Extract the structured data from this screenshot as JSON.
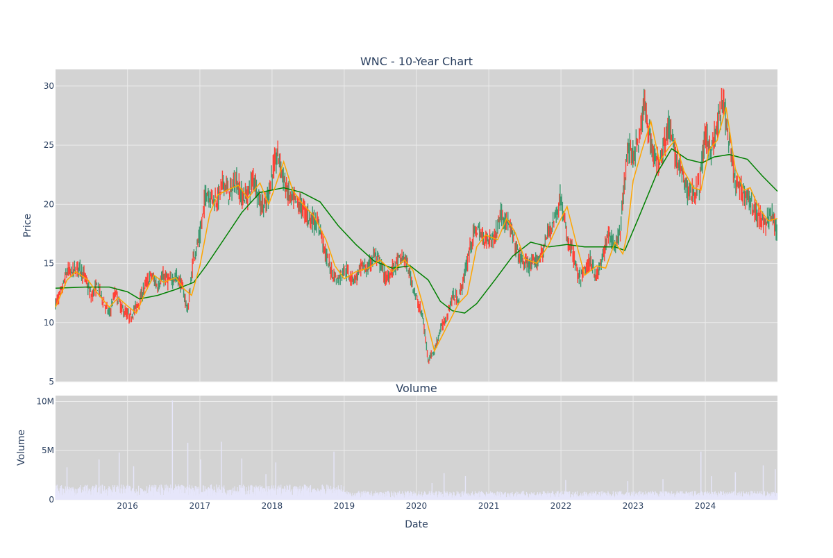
{
  "chart_data": {
    "type": "candlestick",
    "title": "WNC - 10-Year Chart",
    "subplot_title": "Volume",
    "xlabel": "Date",
    "ylabel": "Price",
    "volume_ylabel": "Volume",
    "x_range": [
      "2015-01-02",
      "2024-12-31"
    ],
    "x_ticks": [
      "2016",
      "2017",
      "2018",
      "2019",
      "2020",
      "2021",
      "2022",
      "2023",
      "2024"
    ],
    "price_ylim": [
      5,
      31.4
    ],
    "price_ticks": [
      5,
      10,
      15,
      20,
      25,
      30
    ],
    "volume_ylim": [
      0,
      10600000
    ],
    "volume_ticks": [
      0,
      5000000,
      10000000
    ],
    "volume_tick_labels": [
      "0",
      "5M",
      "10M"
    ],
    "grid": true,
    "colors": {
      "plot_bg": "#d3d3d3",
      "grid": "#ebebeb",
      "increasing": "#3d9970",
      "decreasing": "#ff4136",
      "ma_short": "#ffa500",
      "ma_long": "#008000",
      "volume": "#e6e6fa",
      "text": "#2a3f5f"
    },
    "price_path": [
      [
        "2015-01-02",
        11.6
      ],
      [
        "2015-02-01",
        12.6
      ],
      [
        "2015-03-01",
        14.3
      ],
      [
        "2015-04-01",
        14.3
      ],
      [
        "2015-05-01",
        14.7
      ],
      [
        "2015-06-01",
        13.8
      ],
      [
        "2015-07-01",
        12.2
      ],
      [
        "2015-08-01",
        13.1
      ],
      [
        "2015-09-01",
        11.8
      ],
      [
        "2015-10-01",
        10.7
      ],
      [
        "2015-11-01",
        12.6
      ],
      [
        "2015-12-01",
        11.2
      ],
      [
        "2016-01-15",
        10.4
      ],
      [
        "2016-03-01",
        11.8
      ],
      [
        "2016-04-01",
        13.2
      ],
      [
        "2016-05-01",
        14.0
      ],
      [
        "2016-06-01",
        13.1
      ],
      [
        "2016-07-01",
        13.9
      ],
      [
        "2016-08-01",
        13.5
      ],
      [
        "2016-09-01",
        13.9
      ],
      [
        "2016-10-01",
        13.2
      ],
      [
        "2016-11-01",
        11.0
      ],
      [
        "2016-12-01",
        15.7
      ],
      [
        "2017-01-01",
        17.2
      ],
      [
        "2017-02-01",
        21.1
      ],
      [
        "2017-03-01",
        20.6
      ],
      [
        "2017-04-01",
        20.4
      ],
      [
        "2017-05-01",
        21.9
      ],
      [
        "2017-06-01",
        20.8
      ],
      [
        "2017-07-01",
        22.2
      ],
      [
        "2017-08-01",
        20.6
      ],
      [
        "2017-09-01",
        20.8
      ],
      [
        "2017-10-01",
        22.4
      ],
      [
        "2017-11-01",
        20.1
      ],
      [
        "2017-12-01",
        19.8
      ],
      [
        "2018-01-01",
        22.6
      ],
      [
        "2018-02-01",
        24.3
      ],
      [
        "2018-03-01",
        22.0
      ],
      [
        "2018-04-01",
        20.5
      ],
      [
        "2018-05-01",
        20.2
      ],
      [
        "2018-06-01",
        19.8
      ],
      [
        "2018-07-01",
        19.0
      ],
      [
        "2018-08-01",
        18.6
      ],
      [
        "2018-09-01",
        18.0
      ],
      [
        "2018-10-01",
        15.6
      ],
      [
        "2018-11-01",
        14.2
      ],
      [
        "2018-12-01",
        13.6
      ],
      [
        "2019-01-01",
        14.6
      ],
      [
        "2019-02-01",
        13.9
      ],
      [
        "2019-03-01",
        13.7
      ],
      [
        "2019-04-01",
        14.8
      ],
      [
        "2019-05-01",
        14.5
      ],
      [
        "2019-06-01",
        15.8
      ],
      [
        "2019-07-01",
        15.0
      ],
      [
        "2019-08-01",
        13.6
      ],
      [
        "2019-09-01",
        14.5
      ],
      [
        "2019-10-01",
        15.2
      ],
      [
        "2019-11-01",
        15.5
      ],
      [
        "2019-12-01",
        14.0
      ],
      [
        "2020-01-01",
        12.0
      ],
      [
        "2020-02-01",
        10.5
      ],
      [
        "2020-03-01",
        6.9
      ],
      [
        "2020-04-01",
        7.6
      ],
      [
        "2020-05-01",
        9.4
      ],
      [
        "2020-06-01",
        10.4
      ],
      [
        "2020-07-01",
        12.2
      ],
      [
        "2020-08-01",
        12.0
      ],
      [
        "2020-09-01",
        14.0
      ],
      [
        "2020-10-01",
        16.6
      ],
      [
        "2020-11-01",
        18.0
      ],
      [
        "2020-12-01",
        17.2
      ],
      [
        "2021-01-01",
        17.0
      ],
      [
        "2021-02-01",
        17.2
      ],
      [
        "2021-03-01",
        19.2
      ],
      [
        "2021-04-01",
        18.6
      ],
      [
        "2021-05-01",
        17.4
      ],
      [
        "2021-06-01",
        15.6
      ],
      [
        "2021-07-01",
        15.0
      ],
      [
        "2021-08-01",
        14.8
      ],
      [
        "2021-09-01",
        15.2
      ],
      [
        "2021-10-01",
        16.0
      ],
      [
        "2021-11-01",
        17.8
      ],
      [
        "2021-12-01",
        18.8
      ],
      [
        "2022-01-01",
        20.6
      ],
      [
        "2022-02-01",
        17.0
      ],
      [
        "2022-03-01",
        16.0
      ],
      [
        "2022-04-01",
        13.6
      ],
      [
        "2022-05-01",
        14.4
      ],
      [
        "2022-06-01",
        15.2
      ],
      [
        "2022-07-01",
        13.8
      ],
      [
        "2022-08-01",
        15.6
      ],
      [
        "2022-09-01",
        17.6
      ],
      [
        "2022-10-01",
        16.4
      ],
      [
        "2022-11-01",
        18.2
      ],
      [
        "2022-12-01",
        24.6
      ],
      [
        "2023-01-01",
        24.2
      ],
      [
        "2023-02-01",
        25.6
      ],
      [
        "2023-03-01",
        28.5
      ],
      [
        "2023-04-01",
        25.2
      ],
      [
        "2023-05-01",
        23.3
      ],
      [
        "2023-06-01",
        24.8
      ],
      [
        "2023-07-01",
        26.6
      ],
      [
        "2023-08-01",
        24.2
      ],
      [
        "2023-09-01",
        22.8
      ],
      [
        "2023-10-01",
        21.2
      ],
      [
        "2023-11-01",
        21.0
      ],
      [
        "2023-12-01",
        21.5
      ],
      [
        "2024-01-01",
        25.8
      ],
      [
        "2024-02-01",
        24.6
      ],
      [
        "2024-03-01",
        26.4
      ],
      [
        "2024-04-01",
        28.8
      ],
      [
        "2024-05-01",
        25.0
      ],
      [
        "2024-06-01",
        21.8
      ],
      [
        "2024-07-01",
        21.2
      ],
      [
        "2024-08-01",
        20.8
      ],
      [
        "2024-09-01",
        19.6
      ],
      [
        "2024-10-01",
        19.0
      ],
      [
        "2024-11-01",
        18.2
      ],
      [
        "2024-12-01",
        19.4
      ],
      [
        "2024-12-31",
        17.2
      ]
    ],
    "ma_short": [
      [
        "2015-01-02",
        11.3
      ],
      [
        "2015-03-01",
        13.6
      ],
      [
        "2015-04-15",
        14.3
      ],
      [
        "2015-06-15",
        13.6
      ],
      [
        "2015-08-01",
        12.5
      ],
      [
        "2015-10-01",
        11.3
      ],
      [
        "2015-11-15",
        12.1
      ],
      [
        "2016-01-01",
        11.4
      ],
      [
        "2016-02-15",
        10.8
      ],
      [
        "2016-04-01",
        12.6
      ],
      [
        "2016-05-15",
        14.0
      ],
      [
        "2016-07-01",
        13.4
      ],
      [
        "2016-09-01",
        13.8
      ],
      [
        "2016-10-15",
        12.8
      ],
      [
        "2016-11-20",
        12.3
      ],
      [
        "2017-01-01",
        14.8
      ],
      [
        "2017-02-20",
        19.2
      ],
      [
        "2017-04-01",
        20.8
      ],
      [
        "2017-06-01",
        21.3
      ],
      [
        "2017-07-15",
        21.6
      ],
      [
        "2017-09-01",
        20.5
      ],
      [
        "2017-11-01",
        21.8
      ],
      [
        "2017-12-15",
        20.0
      ],
      [
        "2018-01-15",
        21.4
      ],
      [
        "2018-03-01",
        23.6
      ],
      [
        "2018-04-15",
        21.2
      ],
      [
        "2018-06-01",
        20.1
      ],
      [
        "2018-08-01",
        19.0
      ],
      [
        "2018-10-01",
        17.0
      ],
      [
        "2018-11-15",
        14.8
      ],
      [
        "2019-01-01",
        13.7
      ],
      [
        "2019-03-01",
        14.3
      ],
      [
        "2019-05-01",
        14.6
      ],
      [
        "2019-07-01",
        15.3
      ],
      [
        "2019-09-01",
        14.3
      ],
      [
        "2019-11-01",
        15.3
      ],
      [
        "2019-12-15",
        14.4
      ],
      [
        "2020-02-01",
        11.6
      ],
      [
        "2020-04-01",
        7.6
      ],
      [
        "2020-06-01",
        9.6
      ],
      [
        "2020-08-01",
        11.6
      ],
      [
        "2020-09-15",
        12.4
      ],
      [
        "2020-11-01",
        16.4
      ],
      [
        "2020-12-15",
        17.4
      ],
      [
        "2021-02-15",
        17.0
      ],
      [
        "2021-04-01",
        18.8
      ],
      [
        "2021-05-15",
        17.6
      ],
      [
        "2021-07-01",
        15.4
      ],
      [
        "2021-09-01",
        15.0
      ],
      [
        "2021-11-01",
        16.6
      ],
      [
        "2021-12-15",
        18.2
      ],
      [
        "2022-02-01",
        19.8
      ],
      [
        "2022-03-15",
        17.0
      ],
      [
        "2022-05-01",
        14.0
      ],
      [
        "2022-07-01",
        14.8
      ],
      [
        "2022-08-15",
        14.6
      ],
      [
        "2022-10-01",
        16.8
      ],
      [
        "2022-11-10",
        15.8
      ],
      [
        "2022-12-01",
        17.4
      ],
      [
        "2023-01-01",
        22.0
      ],
      [
        "2023-02-15",
        24.6
      ],
      [
        "2023-04-01",
        27.0
      ],
      [
        "2023-05-15",
        23.6
      ],
      [
        "2023-07-01",
        24.8
      ],
      [
        "2023-08-01",
        25.4
      ],
      [
        "2023-09-15",
        22.8
      ],
      [
        "2023-11-01",
        21.4
      ],
      [
        "2023-12-10",
        21.2
      ],
      [
        "2024-01-20",
        24.6
      ],
      [
        "2024-03-01",
        25.4
      ],
      [
        "2024-04-15",
        28.2
      ],
      [
        "2024-06-01",
        23.0
      ],
      [
        "2024-07-15",
        21.2
      ],
      [
        "2024-08-15",
        21.4
      ],
      [
        "2024-10-01",
        19.6
      ],
      [
        "2024-11-15",
        18.6
      ],
      [
        "2024-12-31",
        18.8
      ]
    ],
    "ma_long": [
      [
        "2015-01-02",
        12.9
      ],
      [
        "2015-06-01",
        13.0
      ],
      [
        "2015-10-01",
        13.0
      ],
      [
        "2016-01-01",
        12.6
      ],
      [
        "2016-03-01",
        12.0
      ],
      [
        "2016-06-01",
        12.3
      ],
      [
        "2016-09-01",
        12.8
      ],
      [
        "2016-12-01",
        13.4
      ],
      [
        "2017-02-01",
        14.8
      ],
      [
        "2017-05-01",
        17.0
      ],
      [
        "2017-08-01",
        19.3
      ],
      [
        "2017-11-01",
        21.0
      ],
      [
        "2018-03-01",
        21.4
      ],
      [
        "2018-06-01",
        21.0
      ],
      [
        "2018-09-01",
        20.2
      ],
      [
        "2018-12-01",
        18.2
      ],
      [
        "2019-03-01",
        16.6
      ],
      [
        "2019-06-01",
        15.2
      ],
      [
        "2019-09-01",
        14.6
      ],
      [
        "2019-12-01",
        14.8
      ],
      [
        "2020-03-01",
        13.6
      ],
      [
        "2020-05-01",
        11.8
      ],
      [
        "2020-07-01",
        11.0
      ],
      [
        "2020-09-01",
        10.8
      ],
      [
        "2020-11-01",
        11.6
      ],
      [
        "2021-02-01",
        13.6
      ],
      [
        "2021-05-01",
        15.6
      ],
      [
        "2021-08-01",
        16.8
      ],
      [
        "2021-11-01",
        16.4
      ],
      [
        "2022-02-01",
        16.6
      ],
      [
        "2022-05-01",
        16.4
      ],
      [
        "2022-08-01",
        16.4
      ],
      [
        "2022-10-01",
        16.4
      ],
      [
        "2022-11-20",
        16.1
      ],
      [
        "2023-02-01",
        19.0
      ],
      [
        "2023-05-01",
        22.6
      ],
      [
        "2023-07-15",
        24.7
      ],
      [
        "2023-10-01",
        23.8
      ],
      [
        "2023-12-15",
        23.5
      ],
      [
        "2024-02-15",
        24.0
      ],
      [
        "2024-05-01",
        24.2
      ],
      [
        "2024-08-01",
        23.8
      ],
      [
        "2024-10-15",
        22.4
      ],
      [
        "2024-12-31",
        21.1
      ]
    ],
    "volume_typical": 700000,
    "volume_spikes": [
      [
        "2015-03-01",
        3300000
      ],
      [
        "2015-08-10",
        4100000
      ],
      [
        "2015-11-20",
        4800000
      ],
      [
        "2016-02-01",
        3400000
      ],
      [
        "2016-08-15",
        10100000
      ],
      [
        "2016-11-01",
        5800000
      ],
      [
        "2017-01-05",
        4100000
      ],
      [
        "2017-04-20",
        5900000
      ],
      [
        "2017-08-01",
        4200000
      ],
      [
        "2017-12-01",
        2600000
      ],
      [
        "2018-01-20",
        3800000
      ],
      [
        "2018-11-10",
        4900000
      ],
      [
        "2020-03-20",
        1700000
      ],
      [
        "2020-05-20",
        2700000
      ],
      [
        "2020-09-05",
        2400000
      ],
      [
        "2022-01-25",
        2000000
      ],
      [
        "2022-12-05",
        1900000
      ],
      [
        "2023-06-01",
        2100000
      ],
      [
        "2023-12-10",
        4900000
      ],
      [
        "2024-02-01",
        2400000
      ],
      [
        "2024-06-01",
        2800000
      ],
      [
        "2024-10-20",
        3500000
      ],
      [
        "2024-12-20",
        3100000
      ]
    ]
  }
}
